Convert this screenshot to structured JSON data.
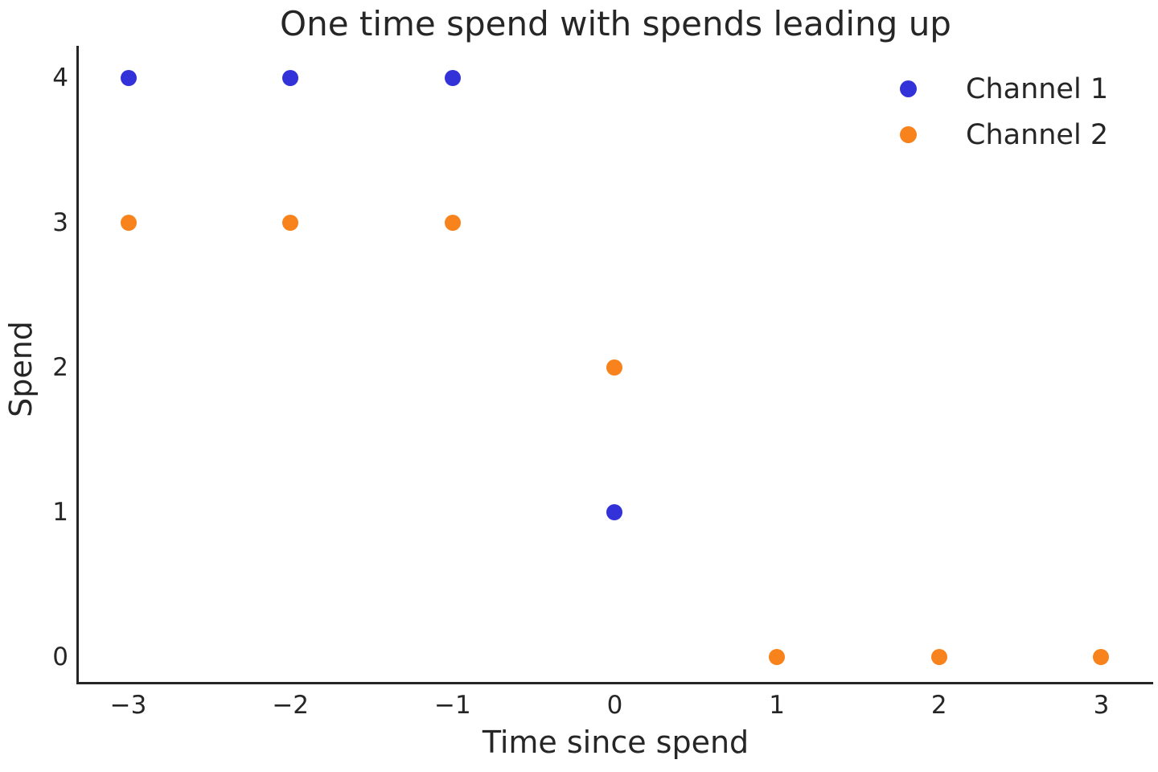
{
  "chart_data": {
    "type": "scatter",
    "title": "One time spend with spends leading up",
    "xlabel": "Time since spend",
    "ylabel": "Spend",
    "xlim": [
      -3.31,
      3.32
    ],
    "ylim": [
      -0.19,
      4.22
    ],
    "grid": false,
    "legend_position": "upper right",
    "x_ticks": [
      -3,
      -2,
      -1,
      0,
      1,
      2,
      3
    ],
    "x_tick_labels": [
      "−3",
      "−2",
      "−1",
      "0",
      "1",
      "2",
      "3"
    ],
    "y_ticks": [
      0,
      1,
      2,
      3,
      4
    ],
    "y_tick_labels": [
      "0",
      "1",
      "2",
      "3",
      "4"
    ],
    "marker_diameter_px": 20,
    "series": [
      {
        "name": "Channel 1",
        "color": "#3232d8",
        "points": [
          [
            -3,
            4
          ],
          [
            -2,
            4
          ],
          [
            -1,
            4
          ],
          [
            0,
            1
          ]
        ]
      },
      {
        "name": "Channel 2",
        "color": "#f8821c",
        "points": [
          [
            -3,
            3
          ],
          [
            -2,
            3
          ],
          [
            -1,
            3
          ],
          [
            0,
            2
          ],
          [
            1,
            0
          ],
          [
            2,
            0
          ],
          [
            3,
            0
          ]
        ]
      }
    ]
  }
}
